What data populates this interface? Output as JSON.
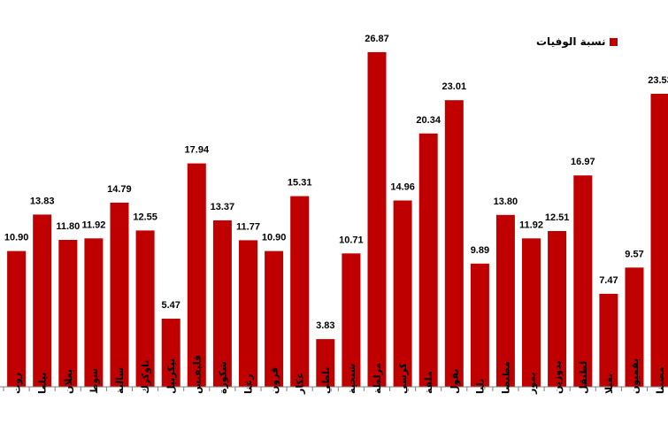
{
  "chart_data": {
    "type": "bar",
    "legend": {
      "label": "نسبة الوفيات",
      "position": "top-right"
    },
    "color": "#c00000",
    "ylim": [
      0,
      28.5
    ],
    "grid": false,
    "categories": [
      "زوت",
      "بيلما",
      "بغلان",
      "سوط",
      "سالبة",
      "ناوكرك",
      "نيكربيل",
      "قليفنس",
      "شكوزة",
      "رغنا",
      "قرون",
      "عكار",
      "بلطي",
      "شنجية",
      "مزلطة",
      "كرسي",
      "ملقة",
      "بقول",
      "تليا",
      "مطبصا",
      "بمور",
      "بدوزين",
      "لطنقل",
      "بغيلا",
      "بقميون",
      "مضينا"
    ],
    "values": [
      10.9,
      13.83,
      11.8,
      11.92,
      14.79,
      12.55,
      5.47,
      17.94,
      13.37,
      11.77,
      10.9,
      15.31,
      3.83,
      10.71,
      26.87,
      14.96,
      20.34,
      23.01,
      9.89,
      13.8,
      11.92,
      12.51,
      16.97,
      7.47,
      9.57,
      23.53
    ],
    "value_labels": [
      "10.90",
      "13.83",
      "11.80",
      "11.92",
      "14.79",
      "12.55",
      "5.47",
      "17.94",
      "13.37",
      "11.77",
      "10.90",
      "15.31",
      "3.83",
      "10.71",
      "26.87",
      "14.96",
      "20.34",
      "23.01",
      "9.89",
      "13.80",
      "11.92",
      "12.51",
      "16.97",
      "7.47",
      "9.57",
      "23.53"
    ]
  }
}
